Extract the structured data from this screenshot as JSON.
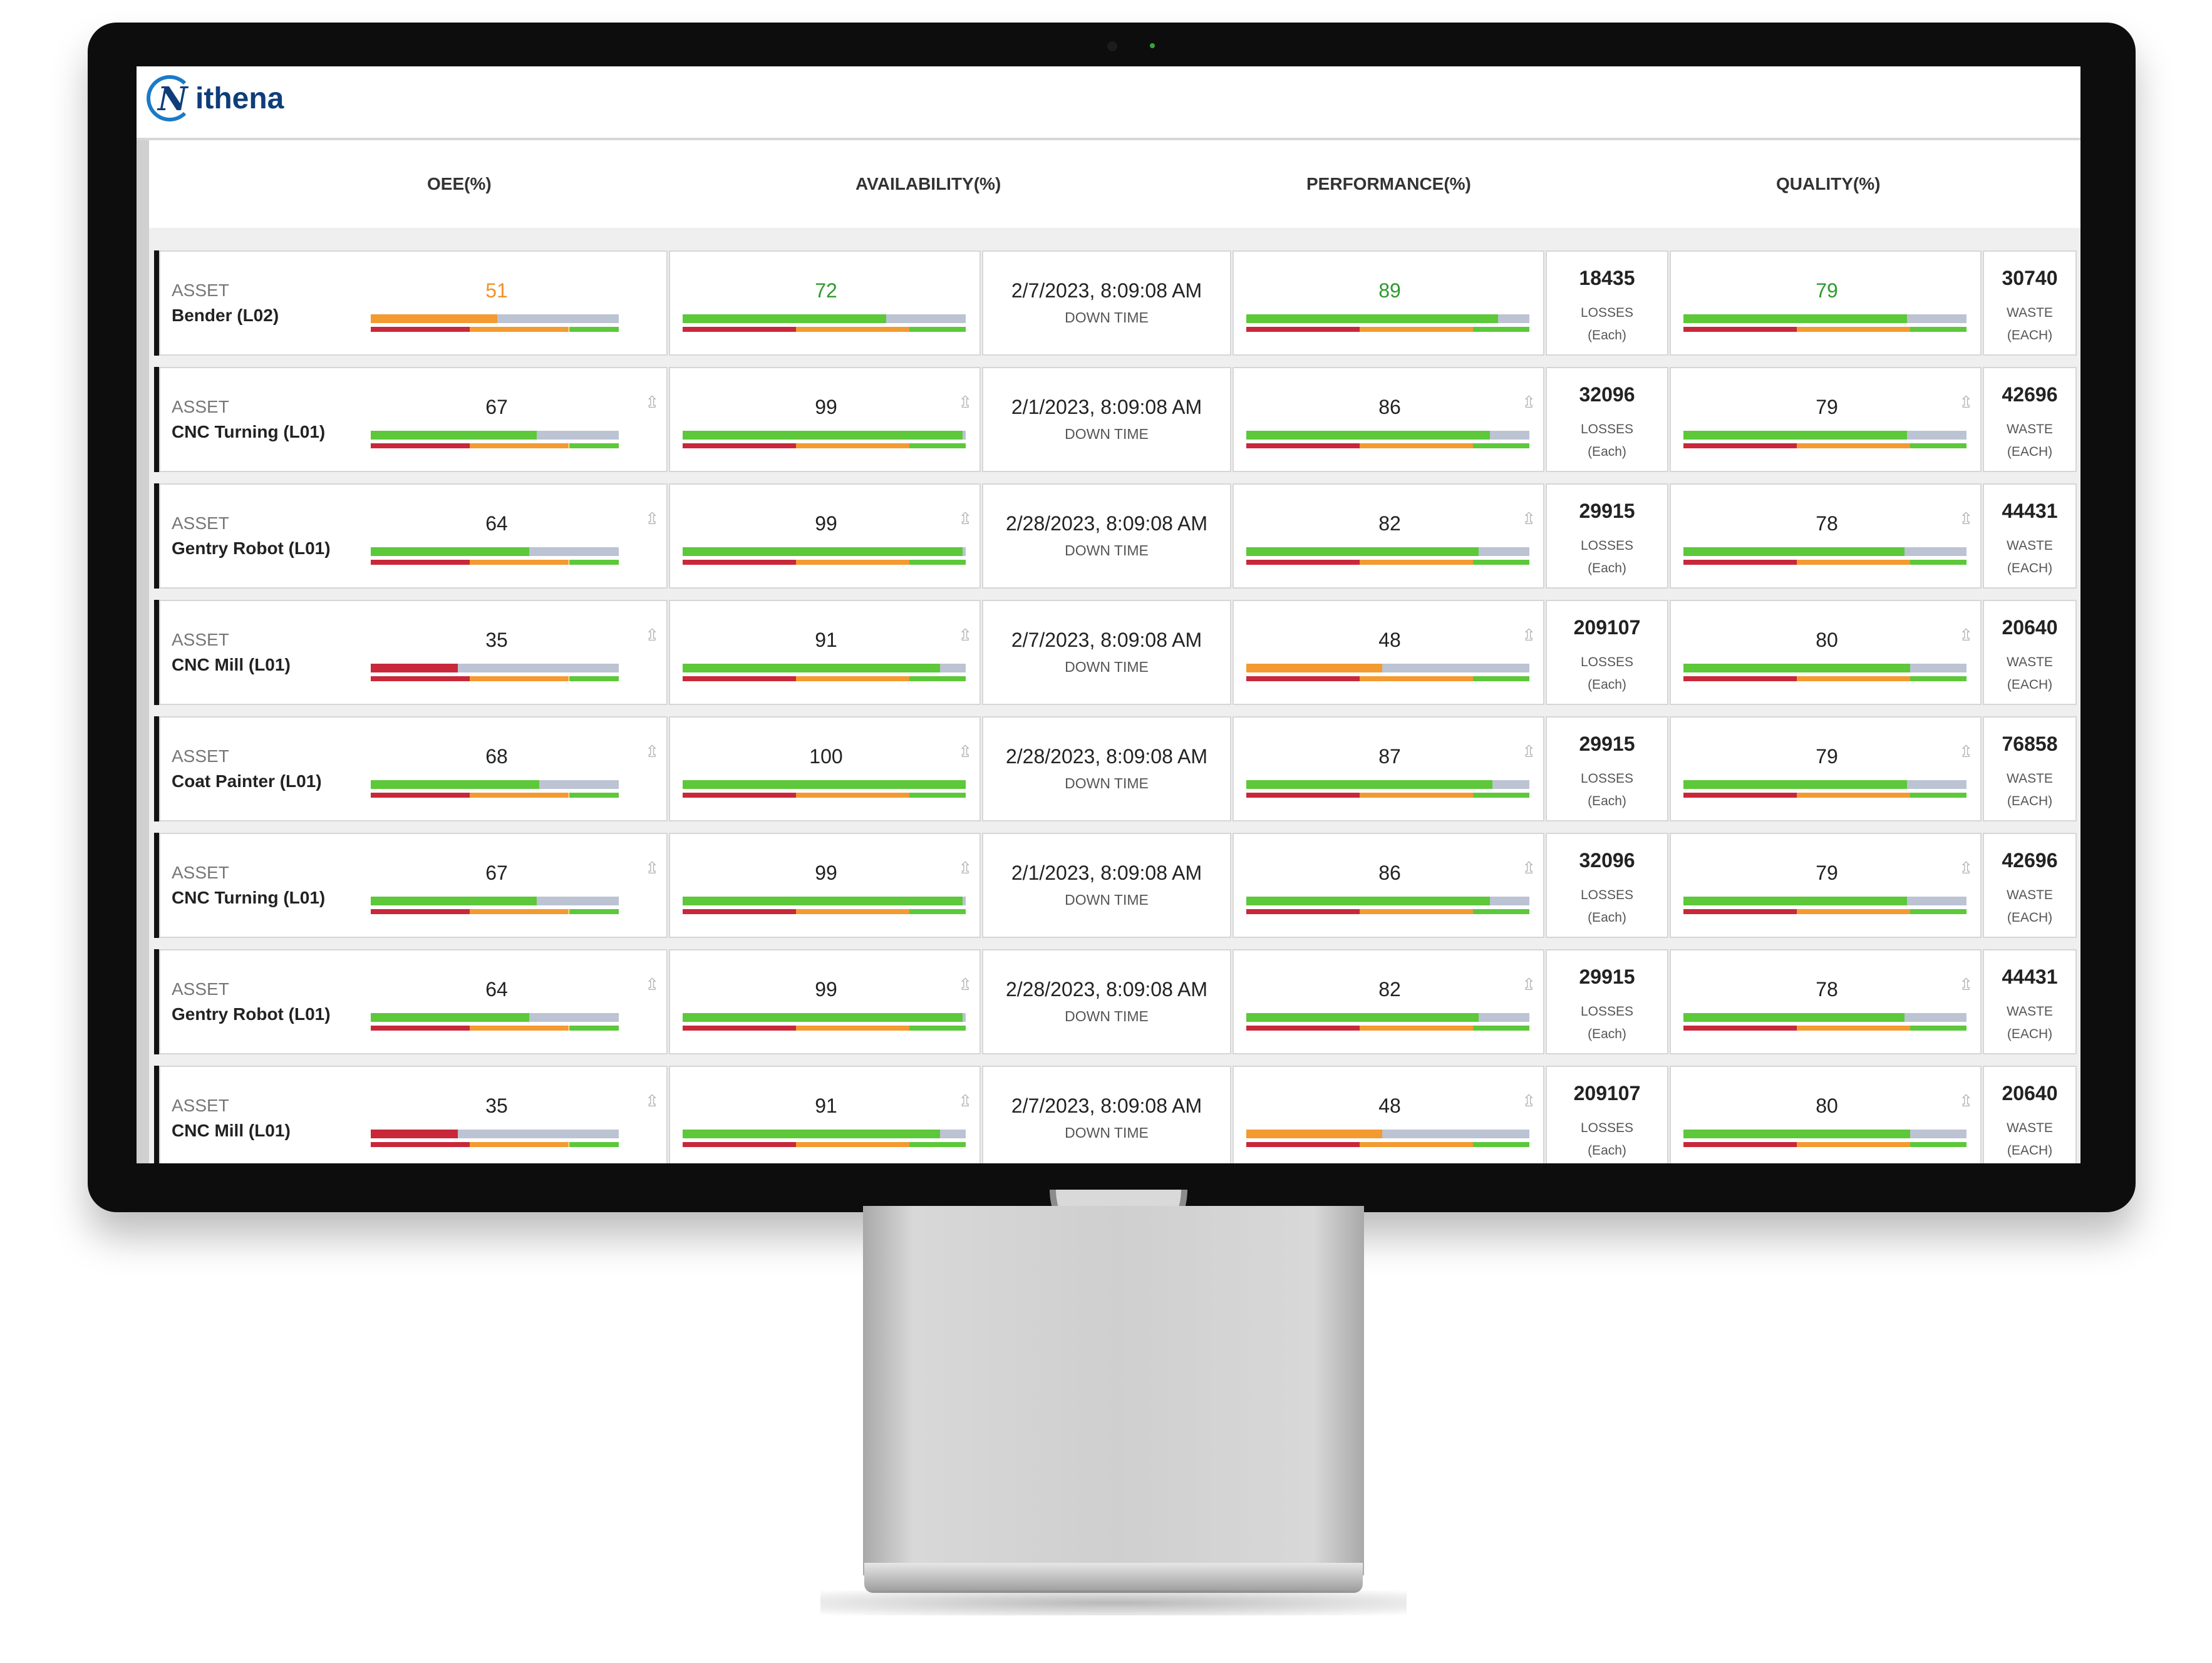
{
  "app": {
    "logo_text": "ithena",
    "logo_mark": "N"
  },
  "headers": {
    "oee": "OEE(%)",
    "availability": "AVAILABILITY(%)",
    "performance": "PERFORMANCE(%)",
    "quality": "QUALITY(%)"
  },
  "labels": {
    "asset": "ASSET",
    "down_time": "DOWN TIME",
    "losses": "LOSSES",
    "each_lower": "(Each)",
    "waste": "WASTE",
    "each_upper": "(EACH)"
  },
  "colors": {
    "green": "#5cc83a",
    "orange": "#f39a30",
    "red": "#c8283a",
    "gray_bar": "#bcc3d3",
    "highlight_green": "#2e9a2e",
    "highlight_orange": "#f0922e"
  },
  "rows": [
    {
      "name": "Bender (L02)",
      "oee": "51",
      "availability": "72",
      "date": "2/7/2023, 8:09:08 AM",
      "performance": "89",
      "losses": "18435",
      "quality": "79",
      "waste": "30740",
      "highlight": true
    },
    {
      "name": "CNC Turning (L01)",
      "oee": "67",
      "availability": "99",
      "date": "2/1/2023, 8:09:08 AM",
      "performance": "86",
      "losses": "32096",
      "quality": "79",
      "waste": "42696",
      "highlight": false
    },
    {
      "name": "Gentry Robot (L01)",
      "oee": "64",
      "availability": "99",
      "date": "2/28/2023, 8:09:08 AM",
      "performance": "82",
      "losses": "29915",
      "quality": "78",
      "waste": "44431",
      "highlight": false
    },
    {
      "name": "CNC Mill (L01)",
      "oee": "35",
      "availability": "91",
      "date": "2/7/2023, 8:09:08 AM",
      "performance": "48",
      "losses": "209107",
      "quality": "80",
      "waste": "20640",
      "highlight": false
    },
    {
      "name": "Coat Painter (L01)",
      "oee": "68",
      "availability": "100",
      "date": "2/28/2023, 8:09:08 AM",
      "performance": "87",
      "losses": "29915",
      "quality": "79",
      "waste": "76858",
      "highlight": false
    },
    {
      "name": "CNC Turning (L01)",
      "oee": "67",
      "availability": "99",
      "date": "2/1/2023, 8:09:08 AM",
      "performance": "86",
      "losses": "32096",
      "quality": "79",
      "waste": "42696",
      "highlight": false
    },
    {
      "name": "Gentry Robot (L01)",
      "oee": "64",
      "availability": "99",
      "date": "2/28/2023, 8:09:08 AM",
      "performance": "82",
      "losses": "29915",
      "quality": "78",
      "waste": "44431",
      "highlight": false
    },
    {
      "name": "CNC Mill (L01)",
      "oee": "35",
      "availability": "91",
      "date": "2/7/2023, 8:09:08 AM",
      "performance": "48",
      "losses": "209107",
      "quality": "80",
      "waste": "20640",
      "highlight": false
    }
  ]
}
